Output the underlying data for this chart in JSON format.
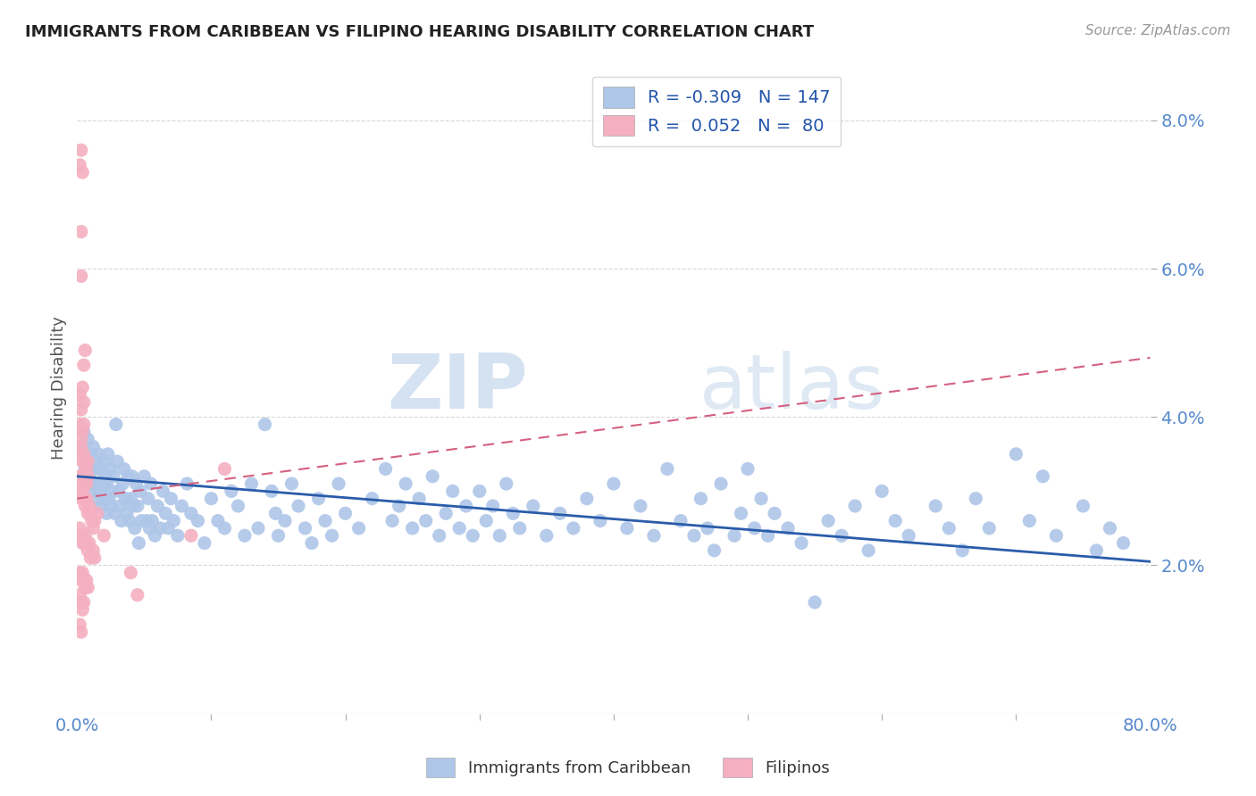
{
  "title": "IMMIGRANTS FROM CARIBBEAN VS FILIPINO HEARING DISABILITY CORRELATION CHART",
  "source": "Source: ZipAtlas.com",
  "ylabel": "Hearing Disability",
  "right_yticks": [
    "2.0%",
    "4.0%",
    "6.0%",
    "8.0%"
  ],
  "right_ytick_vals": [
    0.02,
    0.04,
    0.06,
    0.08
  ],
  "legend_blue_r": "-0.309",
  "legend_blue_n": "147",
  "legend_pink_r": "0.052",
  "legend_pink_n": "80",
  "blue_color": "#aec6e8",
  "pink_color": "#f4afc0",
  "blue_line_color": "#2a5caa",
  "pink_line_color": "#d46080",
  "watermark_zip": "ZIP",
  "watermark_atlas": "atlas",
  "background_color": "#ffffff",
  "grid_color": "#d8d8d8",
  "xlim": [
    0.0,
    0.8
  ],
  "ylim": [
    0.0,
    0.088
  ],
  "blue_line_x0": 0.0,
  "blue_line_y0": 0.032,
  "blue_line_x1": 0.8,
  "blue_line_y1": 0.0205,
  "pink_line_x0": 0.0,
  "pink_line_y0": 0.029,
  "pink_line_x1": 0.8,
  "pink_line_y1": 0.048,
  "blue_scatter": [
    [
      0.004,
      0.036
    ],
    [
      0.005,
      0.038
    ],
    [
      0.006,
      0.033
    ],
    [
      0.007,
      0.034
    ],
    [
      0.008,
      0.037
    ],
    [
      0.009,
      0.032
    ],
    [
      0.01,
      0.035
    ],
    [
      0.01,
      0.031
    ],
    [
      0.011,
      0.033
    ],
    [
      0.012,
      0.03
    ],
    [
      0.012,
      0.036
    ],
    [
      0.013,
      0.034
    ],
    [
      0.014,
      0.031
    ],
    [
      0.015,
      0.033
    ],
    [
      0.015,
      0.029
    ],
    [
      0.016,
      0.035
    ],
    [
      0.017,
      0.03
    ],
    [
      0.018,
      0.033
    ],
    [
      0.018,
      0.028
    ],
    [
      0.019,
      0.031
    ],
    [
      0.02,
      0.034
    ],
    [
      0.02,
      0.029
    ],
    [
      0.021,
      0.032
    ],
    [
      0.022,
      0.027
    ],
    [
      0.022,
      0.031
    ],
    [
      0.023,
      0.035
    ],
    [
      0.024,
      0.029
    ],
    [
      0.025,
      0.033
    ],
    [
      0.025,
      0.028
    ],
    [
      0.026,
      0.03
    ],
    [
      0.027,
      0.032
    ],
    [
      0.028,
      0.027
    ],
    [
      0.029,
      0.039
    ],
    [
      0.03,
      0.034
    ],
    [
      0.031,
      0.03
    ],
    [
      0.032,
      0.028
    ],
    [
      0.033,
      0.026
    ],
    [
      0.034,
      0.031
    ],
    [
      0.035,
      0.033
    ],
    [
      0.036,
      0.029
    ],
    [
      0.037,
      0.027
    ],
    [
      0.038,
      0.032
    ],
    [
      0.039,
      0.026
    ],
    [
      0.04,
      0.029
    ],
    [
      0.041,
      0.032
    ],
    [
      0.042,
      0.028
    ],
    [
      0.043,
      0.025
    ],
    [
      0.044,
      0.031
    ],
    [
      0.045,
      0.028
    ],
    [
      0.046,
      0.023
    ],
    [
      0.047,
      0.03
    ],
    [
      0.048,
      0.026
    ],
    [
      0.05,
      0.032
    ],
    [
      0.052,
      0.026
    ],
    [
      0.053,
      0.029
    ],
    [
      0.054,
      0.025
    ],
    [
      0.055,
      0.031
    ],
    [
      0.056,
      0.026
    ],
    [
      0.058,
      0.024
    ],
    [
      0.06,
      0.028
    ],
    [
      0.062,
      0.025
    ],
    [
      0.064,
      0.03
    ],
    [
      0.066,
      0.027
    ],
    [
      0.068,
      0.025
    ],
    [
      0.07,
      0.029
    ],
    [
      0.072,
      0.026
    ],
    [
      0.075,
      0.024
    ],
    [
      0.078,
      0.028
    ],
    [
      0.082,
      0.031
    ],
    [
      0.085,
      0.027
    ],
    [
      0.09,
      0.026
    ],
    [
      0.095,
      0.023
    ],
    [
      0.1,
      0.029
    ],
    [
      0.105,
      0.026
    ],
    [
      0.11,
      0.025
    ],
    [
      0.115,
      0.03
    ],
    [
      0.12,
      0.028
    ],
    [
      0.125,
      0.024
    ],
    [
      0.13,
      0.031
    ],
    [
      0.135,
      0.025
    ],
    [
      0.14,
      0.039
    ],
    [
      0.145,
      0.03
    ],
    [
      0.148,
      0.027
    ],
    [
      0.15,
      0.024
    ],
    [
      0.155,
      0.026
    ],
    [
      0.16,
      0.031
    ],
    [
      0.165,
      0.028
    ],
    [
      0.17,
      0.025
    ],
    [
      0.175,
      0.023
    ],
    [
      0.18,
      0.029
    ],
    [
      0.185,
      0.026
    ],
    [
      0.19,
      0.024
    ],
    [
      0.195,
      0.031
    ],
    [
      0.2,
      0.027
    ],
    [
      0.21,
      0.025
    ],
    [
      0.22,
      0.029
    ],
    [
      0.23,
      0.033
    ],
    [
      0.235,
      0.026
    ],
    [
      0.24,
      0.028
    ],
    [
      0.245,
      0.031
    ],
    [
      0.25,
      0.025
    ],
    [
      0.255,
      0.029
    ],
    [
      0.26,
      0.026
    ],
    [
      0.265,
      0.032
    ],
    [
      0.27,
      0.024
    ],
    [
      0.275,
      0.027
    ],
    [
      0.28,
      0.03
    ],
    [
      0.285,
      0.025
    ],
    [
      0.29,
      0.028
    ],
    [
      0.295,
      0.024
    ],
    [
      0.3,
      0.03
    ],
    [
      0.305,
      0.026
    ],
    [
      0.31,
      0.028
    ],
    [
      0.315,
      0.024
    ],
    [
      0.32,
      0.031
    ],
    [
      0.325,
      0.027
    ],
    [
      0.33,
      0.025
    ],
    [
      0.34,
      0.028
    ],
    [
      0.35,
      0.024
    ],
    [
      0.36,
      0.027
    ],
    [
      0.37,
      0.025
    ],
    [
      0.38,
      0.029
    ],
    [
      0.39,
      0.026
    ],
    [
      0.4,
      0.031
    ],
    [
      0.41,
      0.025
    ],
    [
      0.42,
      0.028
    ],
    [
      0.43,
      0.024
    ],
    [
      0.44,
      0.033
    ],
    [
      0.45,
      0.026
    ],
    [
      0.46,
      0.024
    ],
    [
      0.465,
      0.029
    ],
    [
      0.47,
      0.025
    ],
    [
      0.475,
      0.022
    ],
    [
      0.48,
      0.031
    ],
    [
      0.49,
      0.024
    ],
    [
      0.495,
      0.027
    ],
    [
      0.5,
      0.033
    ],
    [
      0.505,
      0.025
    ],
    [
      0.51,
      0.029
    ],
    [
      0.515,
      0.024
    ],
    [
      0.52,
      0.027
    ],
    [
      0.53,
      0.025
    ],
    [
      0.54,
      0.023
    ],
    [
      0.55,
      0.015
    ],
    [
      0.56,
      0.026
    ],
    [
      0.57,
      0.024
    ],
    [
      0.58,
      0.028
    ],
    [
      0.59,
      0.022
    ],
    [
      0.6,
      0.03
    ],
    [
      0.61,
      0.026
    ],
    [
      0.62,
      0.024
    ],
    [
      0.64,
      0.028
    ],
    [
      0.65,
      0.025
    ],
    [
      0.66,
      0.022
    ],
    [
      0.67,
      0.029
    ],
    [
      0.68,
      0.025
    ],
    [
      0.7,
      0.035
    ],
    [
      0.71,
      0.026
    ],
    [
      0.72,
      0.032
    ],
    [
      0.73,
      0.024
    ],
    [
      0.75,
      0.028
    ],
    [
      0.76,
      0.022
    ],
    [
      0.77,
      0.025
    ],
    [
      0.78,
      0.023
    ]
  ],
  "pink_scatter": [
    [
      0.002,
      0.074
    ],
    [
      0.003,
      0.076
    ],
    [
      0.004,
      0.073
    ],
    [
      0.003,
      0.065
    ],
    [
      0.003,
      0.059
    ],
    [
      0.005,
      0.047
    ],
    [
      0.006,
      0.049
    ],
    [
      0.002,
      0.043
    ],
    [
      0.004,
      0.044
    ],
    [
      0.003,
      0.041
    ],
    [
      0.005,
      0.042
    ],
    [
      0.002,
      0.039
    ],
    [
      0.003,
      0.037
    ],
    [
      0.004,
      0.038
    ],
    [
      0.005,
      0.039
    ],
    [
      0.002,
      0.035
    ],
    [
      0.003,
      0.036
    ],
    [
      0.004,
      0.034
    ],
    [
      0.005,
      0.035
    ],
    [
      0.006,
      0.034
    ],
    [
      0.007,
      0.033
    ],
    [
      0.008,
      0.034
    ],
    [
      0.002,
      0.032
    ],
    [
      0.003,
      0.032
    ],
    [
      0.004,
      0.031
    ],
    [
      0.005,
      0.032
    ],
    [
      0.006,
      0.031
    ],
    [
      0.007,
      0.031
    ],
    [
      0.008,
      0.032
    ],
    [
      0.002,
      0.03
    ],
    [
      0.003,
      0.029
    ],
    [
      0.004,
      0.03
    ],
    [
      0.005,
      0.029
    ],
    [
      0.006,
      0.028
    ],
    [
      0.007,
      0.029
    ],
    [
      0.008,
      0.027
    ],
    [
      0.009,
      0.028
    ],
    [
      0.01,
      0.027
    ],
    [
      0.011,
      0.026
    ],
    [
      0.012,
      0.025
    ],
    [
      0.013,
      0.026
    ],
    [
      0.002,
      0.025
    ],
    [
      0.003,
      0.024
    ],
    [
      0.004,
      0.023
    ],
    [
      0.005,
      0.023
    ],
    [
      0.006,
      0.024
    ],
    [
      0.007,
      0.023
    ],
    [
      0.008,
      0.022
    ],
    [
      0.009,
      0.023
    ],
    [
      0.01,
      0.021
    ],
    [
      0.012,
      0.022
    ],
    [
      0.013,
      0.021
    ],
    [
      0.002,
      0.019
    ],
    [
      0.003,
      0.018
    ],
    [
      0.004,
      0.019
    ],
    [
      0.005,
      0.018
    ],
    [
      0.006,
      0.017
    ],
    [
      0.007,
      0.018
    ],
    [
      0.008,
      0.017
    ],
    [
      0.002,
      0.016
    ],
    [
      0.003,
      0.015
    ],
    [
      0.004,
      0.014
    ],
    [
      0.005,
      0.015
    ],
    [
      0.002,
      0.012
    ],
    [
      0.003,
      0.011
    ],
    [
      0.015,
      0.027
    ],
    [
      0.02,
      0.024
    ],
    [
      0.04,
      0.019
    ],
    [
      0.045,
      0.016
    ],
    [
      0.085,
      0.024
    ],
    [
      0.11,
      0.033
    ]
  ]
}
